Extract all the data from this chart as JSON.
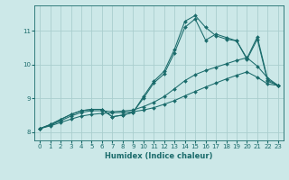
{
  "xlabel": "Humidex (Indice chaleur)",
  "ylabel": "",
  "bg_color": "#cce8e8",
  "grid_color": "#aacece",
  "line_color": "#1a6b6b",
  "xlim": [
    -0.5,
    23.5
  ],
  "ylim": [
    7.75,
    11.75
  ],
  "xticks": [
    0,
    1,
    2,
    3,
    4,
    5,
    6,
    7,
    8,
    9,
    10,
    11,
    12,
    13,
    14,
    15,
    16,
    17,
    18,
    19,
    20,
    21,
    22,
    23
  ],
  "yticks": [
    8,
    9,
    10,
    11
  ],
  "series": [
    {
      "x": [
        0,
        1,
        2,
        3,
        4,
        5,
        6,
        7,
        8,
        9,
        10,
        11,
        12,
        13,
        14,
        15,
        16,
        17,
        18,
        19,
        20,
        21,
        22,
        23
      ],
      "y": [
        8.1,
        8.22,
        8.37,
        8.52,
        8.63,
        8.67,
        8.67,
        8.45,
        8.5,
        8.58,
        9.05,
        9.5,
        9.8,
        10.45,
        11.28,
        11.45,
        11.1,
        10.85,
        10.75,
        10.7,
        10.18,
        10.82,
        9.55,
        9.38
      ]
    },
    {
      "x": [
        0,
        1,
        2,
        3,
        4,
        5,
        6,
        7,
        8,
        9,
        10,
        11,
        12,
        13,
        14,
        15,
        16,
        17,
        18,
        19,
        20,
        21,
        22,
        23
      ],
      "y": [
        8.1,
        8.22,
        8.37,
        8.52,
        8.63,
        8.67,
        8.67,
        8.45,
        8.5,
        8.58,
        9.0,
        9.45,
        9.72,
        10.35,
        11.1,
        11.35,
        10.72,
        10.9,
        10.8,
        10.7,
        10.15,
        10.75,
        9.5,
        9.38
      ]
    },
    {
      "x": [
        0,
        1,
        2,
        3,
        4,
        5,
        6,
        7,
        8,
        9,
        10,
        11,
        12,
        13,
        14,
        15,
        16,
        17,
        18,
        19,
        20,
        21,
        22,
        23
      ],
      "y": [
        8.1,
        8.2,
        8.33,
        8.47,
        8.58,
        8.63,
        8.63,
        8.6,
        8.62,
        8.65,
        8.75,
        8.88,
        9.05,
        9.28,
        9.52,
        9.7,
        9.82,
        9.92,
        10.02,
        10.12,
        10.2,
        9.95,
        9.6,
        9.38
      ]
    },
    {
      "x": [
        0,
        1,
        2,
        3,
        4,
        5,
        6,
        7,
        8,
        9,
        10,
        11,
        12,
        13,
        14,
        15,
        16,
        17,
        18,
        19,
        20,
        21,
        22,
        23
      ],
      "y": [
        8.1,
        8.18,
        8.28,
        8.38,
        8.47,
        8.52,
        8.55,
        8.57,
        8.58,
        8.6,
        8.65,
        8.72,
        8.82,
        8.93,
        9.07,
        9.2,
        9.33,
        9.45,
        9.57,
        9.68,
        9.78,
        9.62,
        9.42,
        9.38
      ]
    }
  ]
}
